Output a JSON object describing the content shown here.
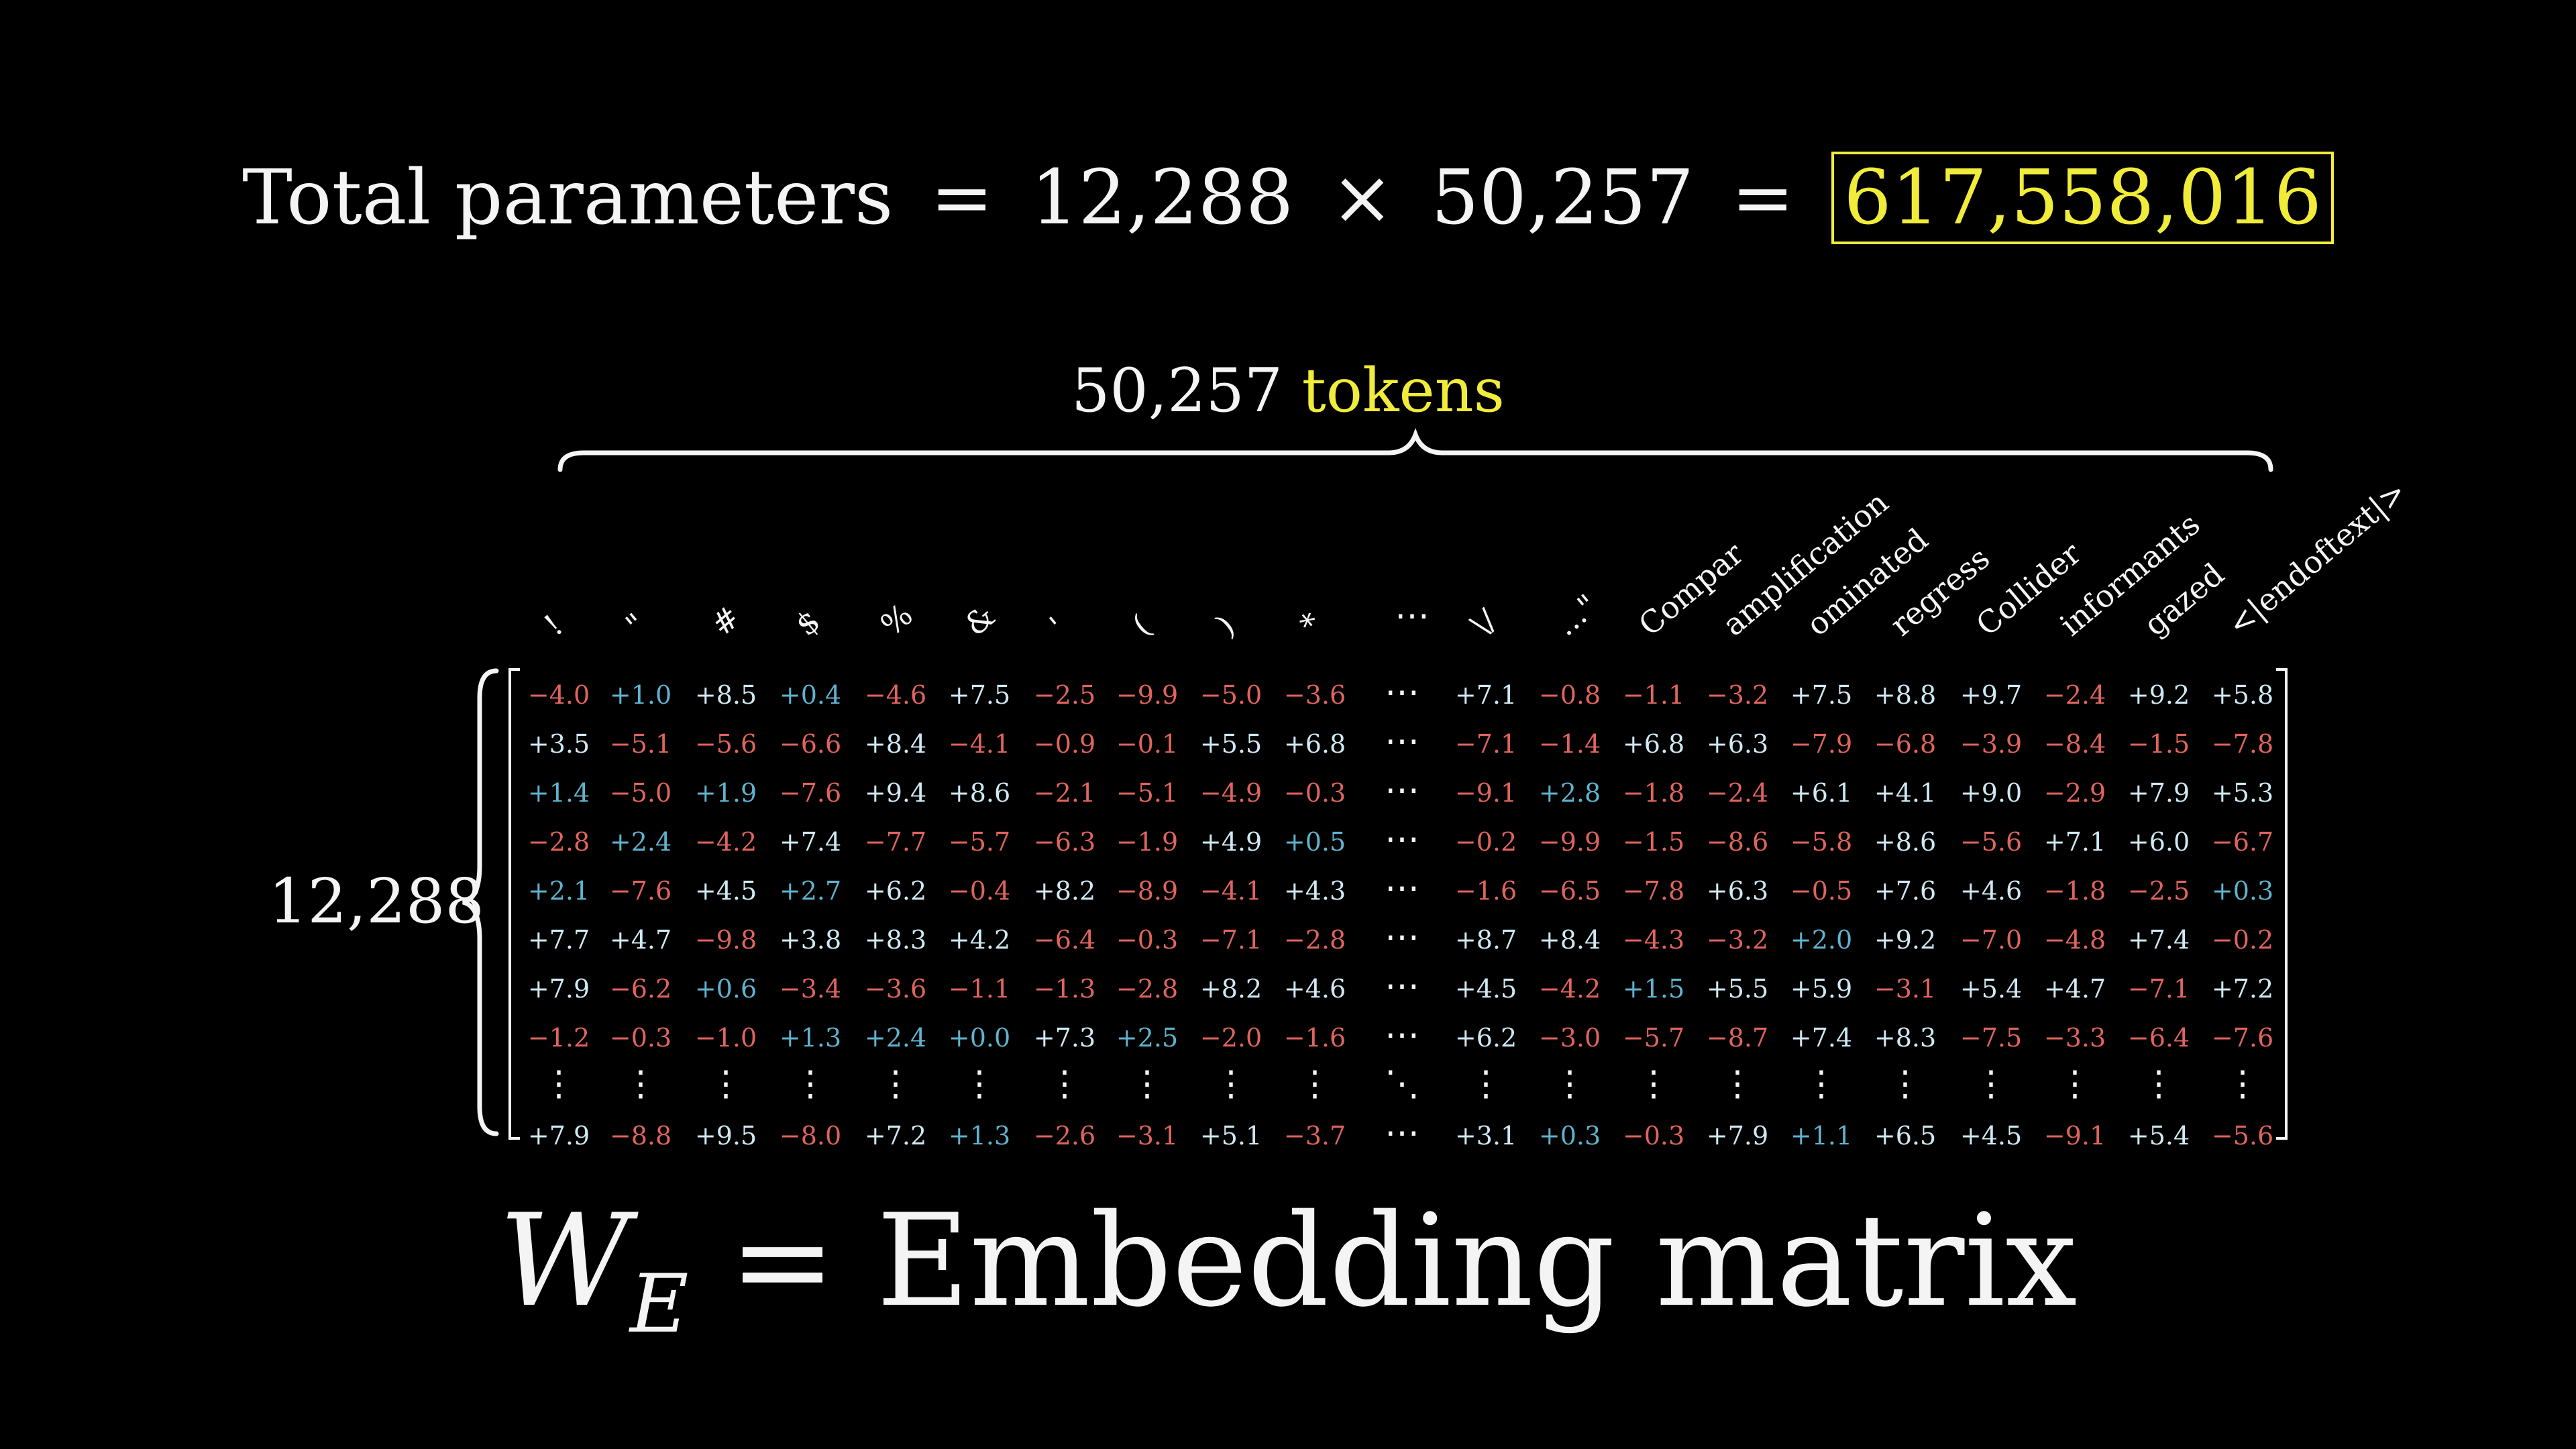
{
  "header": {
    "label": "Total parameters",
    "eq": "=",
    "rows": "12,288",
    "times": "×",
    "cols": "50,257",
    "eq2": "=",
    "total": "617,558,016"
  },
  "tokens_caption": {
    "count": "50,257",
    "word": "tokens"
  },
  "rows_caption": "12,288",
  "columns": [
    "!",
    "\"",
    "#",
    "$",
    "%",
    "&",
    "'",
    "(",
    ")",
    "*",
    "…",
    "\\/",
    "...\"",
    "Compar",
    "amplification",
    "ominated",
    "regress",
    "Collider",
    "informants",
    "gazed",
    "<|endoftext|>"
  ],
  "matrix": [
    [
      "-4.0",
      "+1.0",
      "+8.5",
      "+0.4",
      "-4.6",
      "+7.5",
      "-2.5",
      "-9.9",
      "-5.0",
      "-3.6",
      "⋯",
      "+7.1",
      "-0.8",
      "-1.1",
      "-3.2",
      "+7.5",
      "+8.8",
      "+9.7",
      "-2.4",
      "+9.2",
      "+5.8"
    ],
    [
      "+3.5",
      "-5.1",
      "-5.6",
      "-6.6",
      "+8.4",
      "-4.1",
      "-0.9",
      "-0.1",
      "+5.5",
      "+6.8",
      "⋯",
      "-7.1",
      "-1.4",
      "+6.8",
      "+6.3",
      "-7.9",
      "-6.8",
      "-3.9",
      "-8.4",
      "-1.5",
      "-7.8"
    ],
    [
      "+1.4",
      "-5.0",
      "+1.9",
      "-7.6",
      "+9.4",
      "+8.6",
      "-2.1",
      "-5.1",
      "-4.9",
      "-0.3",
      "⋯",
      "-9.1",
      "+2.8",
      "-1.8",
      "-2.4",
      "+6.1",
      "+4.1",
      "+9.0",
      "-2.9",
      "+7.9",
      "+5.3"
    ],
    [
      "-2.8",
      "+2.4",
      "-4.2",
      "+7.4",
      "-7.7",
      "-5.7",
      "-6.3",
      "-1.9",
      "+4.9",
      "+0.5",
      "⋯",
      "-0.2",
      "-9.9",
      "-1.5",
      "-8.6",
      "-5.8",
      "+8.6",
      "-5.6",
      "+7.1",
      "+6.0",
      "-6.7"
    ],
    [
      "+2.1",
      "-7.6",
      "+4.5",
      "+2.7",
      "+6.2",
      "-0.4",
      "+8.2",
      "-8.9",
      "-4.1",
      "+4.3",
      "⋯",
      "-1.6",
      "-6.5",
      "-7.8",
      "+6.3",
      "-0.5",
      "+7.6",
      "+4.6",
      "-1.8",
      "-2.5",
      "+0.3"
    ],
    [
      "+7.7",
      "+4.7",
      "-9.8",
      "+3.8",
      "+8.3",
      "+4.2",
      "-6.4",
      "-0.3",
      "-7.1",
      "-2.8",
      "⋯",
      "+8.7",
      "+8.4",
      "-4.3",
      "-3.2",
      "+2.0",
      "+9.2",
      "-7.0",
      "-4.8",
      "+7.4",
      "-0.2"
    ],
    [
      "+7.9",
      "-6.2",
      "+0.6",
      "-3.4",
      "-3.6",
      "-1.1",
      "-1.3",
      "-2.8",
      "+8.2",
      "+4.6",
      "⋯",
      "+4.5",
      "-4.2",
      "+1.5",
      "+5.5",
      "+5.9",
      "-3.1",
      "+5.4",
      "+4.7",
      "-7.1",
      "+7.2"
    ],
    [
      "-1.2",
      "-0.3",
      "-1.0",
      "+1.3",
      "+2.4",
      "+0.0",
      "+7.3",
      "+2.5",
      "-2.0",
      "-1.6",
      "⋯",
      "+6.2",
      "-3.0",
      "-5.7",
      "-8.7",
      "+7.4",
      "+8.3",
      "-7.5",
      "-3.3",
      "-6.4",
      "-7.6"
    ],
    [
      "⋮",
      "⋮",
      "⋮",
      "⋮",
      "⋮",
      "⋮",
      "⋮",
      "⋮",
      "⋮",
      "⋮",
      "⋱",
      "⋮",
      "⋮",
      "⋮",
      "⋮",
      "⋮",
      "⋮",
      "⋮",
      "⋮",
      "⋮",
      "⋮"
    ],
    [
      "+7.9",
      "-8.8",
      "+9.5",
      "-8.0",
      "+7.2",
      "+1.3",
      "-2.6",
      "-3.1",
      "+5.1",
      "-3.7",
      "⋯",
      "+3.1",
      "+0.3",
      "-0.3",
      "+7.9",
      "+1.1",
      "+6.5",
      "+4.5",
      "-9.1",
      "+5.4",
      "-5.6"
    ]
  ],
  "title": {
    "symbol": "W",
    "subscript": "E",
    "eq": "=",
    "text": "Embedding matrix"
  },
  "colors": {
    "negative": "#e0645e",
    "positive": "#cfe9f4",
    "positive_dim": "#5fb3cf",
    "highlight": "#f1ec3a"
  }
}
